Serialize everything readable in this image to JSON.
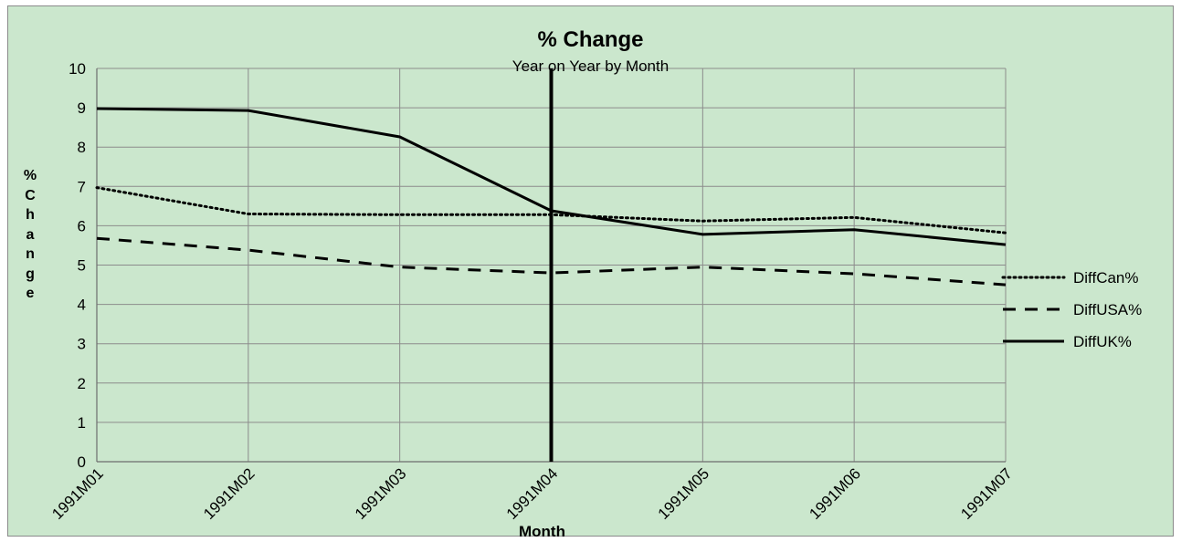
{
  "chart_data": {
    "type": "line",
    "title": "% Change",
    "subtitle": "Year on Year  by Month",
    "xlabel": "Month",
    "ylabel": "% Change",
    "ylim": [
      0,
      10
    ],
    "yticks": [
      "0",
      "1",
      "2",
      "3",
      "4",
      "5",
      "6",
      "7",
      "8",
      "9",
      "10"
    ],
    "categories": [
      "1991M01",
      "1991M02",
      "1991M03",
      "1991M04",
      "1991M05",
      "1991M06",
      "1991M07"
    ],
    "grid": true,
    "legend_position": "right",
    "series": [
      {
        "name": "DiffCan%",
        "style": "dotted",
        "values": [
          6.97,
          6.3,
          6.28,
          6.28,
          6.12,
          6.21,
          5.82
        ]
      },
      {
        "name": "DiffUSA%",
        "style": "dashed",
        "values": [
          5.68,
          5.38,
          4.95,
          4.8,
          4.95,
          4.78,
          4.5
        ]
      },
      {
        "name": "DiffUK%",
        "style": "solid",
        "values": [
          8.98,
          8.93,
          8.26,
          6.38,
          5.78,
          5.9,
          5.52
        ]
      }
    ],
    "vertical_marker": {
      "category": "1991M04"
    },
    "colors": {
      "background": "#cbe7cd",
      "grid": "#8c8c8c",
      "line": "#000000"
    }
  }
}
